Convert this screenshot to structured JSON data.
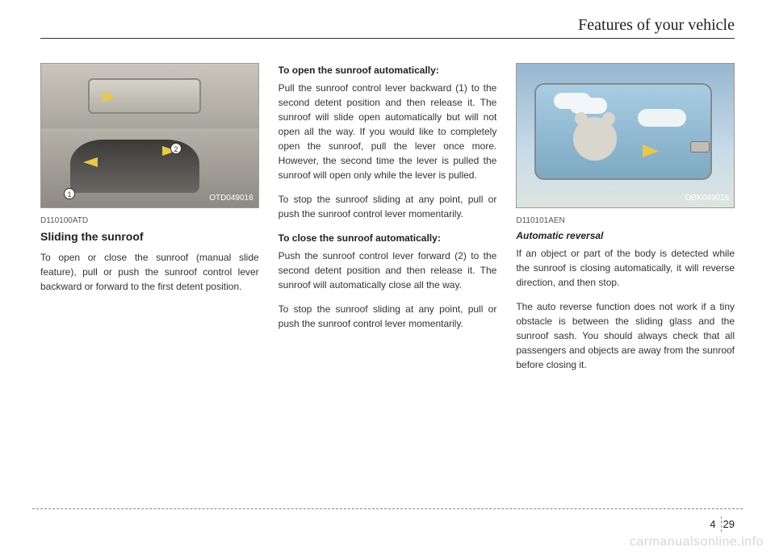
{
  "header": {
    "title": "Features of your vehicle"
  },
  "col1": {
    "fig_caption": "OTD049016",
    "badge1": "1",
    "badge2": "2",
    "code": "D110100ATD",
    "heading": "Sliding the sunroof",
    "para1": "To open or close the sunroof (manual slide feature), pull or push the sunroof control lever backward or forward to the first detent position."
  },
  "col2": {
    "h_open": "To open the sunroof automatically:",
    "p_open": "Pull the sunroof control lever backward (1) to the second detent position and then release it. The sunroof will slide open automatically but will not open all the way. If you would like to completely open the sunroof, pull the lever once more. However, the second time the lever is pulled the sunroof will open only while the lever is pulled.",
    "p_open2": "To stop the sunroof sliding at any point, pull or push the sunroof control lever momentarily.",
    "h_close": "To close the sunroof automatically:",
    "p_close": "Push the sunroof control lever forward (2) to the second detent position and then release it. The sunroof will automatically close all the way.",
    "p_close2": "To stop the sunroof sliding at any point, pull or push the sunroof control lever momentarily."
  },
  "col3": {
    "fig_caption": "OBK049018",
    "code": "D110101AEN",
    "heading": "Automatic reversal",
    "para1": "If an object or part of the body is detected while the sunroof is closing automatically, it will reverse direction, and then stop.",
    "para2": "The auto reverse function does not work if a tiny obstacle is between the sliding glass and the sunroof sash. You should always check that all passengers and objects are away from the sunroof before closing it."
  },
  "footer": {
    "section": "4",
    "page": "29",
    "watermark": "carmanualsonline.info"
  },
  "colors": {
    "text": "#333333",
    "rule": "#333333",
    "dash": "#888888",
    "arrow": "#e6c84a",
    "watermark": "#d7d7d7"
  }
}
